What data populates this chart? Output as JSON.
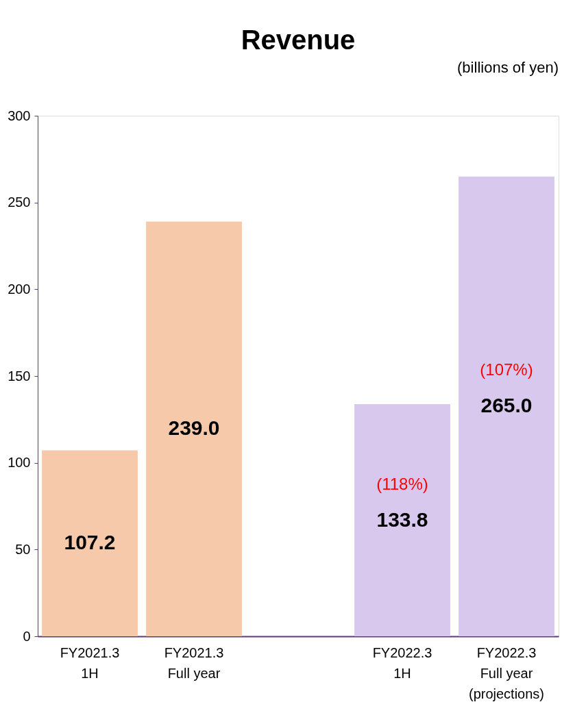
{
  "chart_data": {
    "type": "bar",
    "title": "Revenue",
    "ylabel": "(billions of yen)",
    "categories": [
      "FY2021.3\n1H",
      "FY2021.3\nFull year",
      null,
      "FY2022.3\n1H",
      "FY2022.3\nFull year\n(projections)"
    ],
    "values": [
      107.2,
      239.0,
      null,
      133.8,
      265.0
    ],
    "colors": [
      "#f6c9aa",
      "#f6c9aa",
      "#ffffff",
      "#d9c8ee",
      "#d9c8ee"
    ],
    "value_labels": [
      "107.2",
      "239.0",
      null,
      "133.8",
      "265.0"
    ],
    "ylim": [
      0,
      300
    ],
    "yticks": [
      0,
      50,
      100,
      150,
      200,
      250,
      300
    ],
    "grid": false,
    "annotations": [
      "(118%)",
      "(107%)"
    ]
  }
}
